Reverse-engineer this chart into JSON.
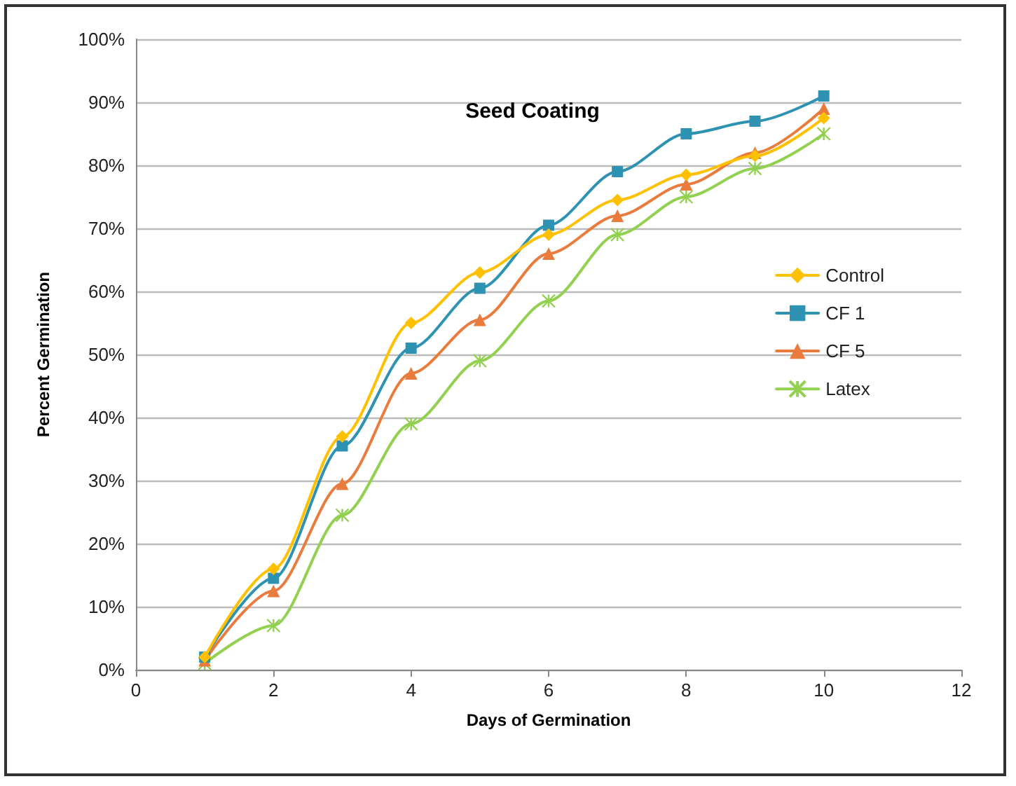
{
  "chart_data": {
    "type": "line",
    "title": "Seed Coating",
    "xlabel": "Days of Germination",
    "ylabel": "Percent Germination",
    "x": [
      1,
      2,
      3,
      4,
      5,
      6,
      7,
      8,
      9,
      10
    ],
    "series": [
      {
        "name": "Control",
        "color": "#ffc000",
        "marker": "diamond",
        "values": [
          2,
          16,
          37,
          55,
          63,
          69,
          74.5,
          78.5,
          81.5,
          87.5
        ]
      },
      {
        "name": "CF 1",
        "color": "#2e93b2",
        "marker": "square",
        "values": [
          2,
          14.5,
          35.5,
          51,
          60.5,
          70.5,
          79,
          85,
          87,
          91
        ]
      },
      {
        "name": "CF 5",
        "color": "#e97c3c",
        "marker": "triangle",
        "values": [
          1.5,
          12.5,
          29.5,
          47,
          55.5,
          66,
          72,
          77,
          82,
          89
        ]
      },
      {
        "name": "Latex",
        "color": "#92d050",
        "marker": "cross",
        "values": [
          1,
          7,
          24.5,
          39,
          49,
          58.5,
          69,
          75,
          79.5,
          85
        ]
      }
    ],
    "xlim": [
      0,
      12
    ],
    "xticks": [
      0,
      2,
      4,
      6,
      8,
      10,
      12
    ],
    "ylim": [
      0,
      100
    ],
    "yticks": [
      {
        "value": 0,
        "label": "0%"
      },
      {
        "value": 10,
        "label": "10%"
      },
      {
        "value": 20,
        "label": "20%"
      },
      {
        "value": 30,
        "label": "30%"
      },
      {
        "value": 40,
        "label": "40%"
      },
      {
        "value": 50,
        "label": "50%"
      },
      {
        "value": 60,
        "label": "60%"
      },
      {
        "value": 70,
        "label": "70%"
      },
      {
        "value": 80,
        "label": "80%"
      },
      {
        "value": 90,
        "label": "90%"
      },
      {
        "value": 100,
        "label": "100%"
      }
    ],
    "grid": "y",
    "legend": "right",
    "line_style": "solid"
  }
}
